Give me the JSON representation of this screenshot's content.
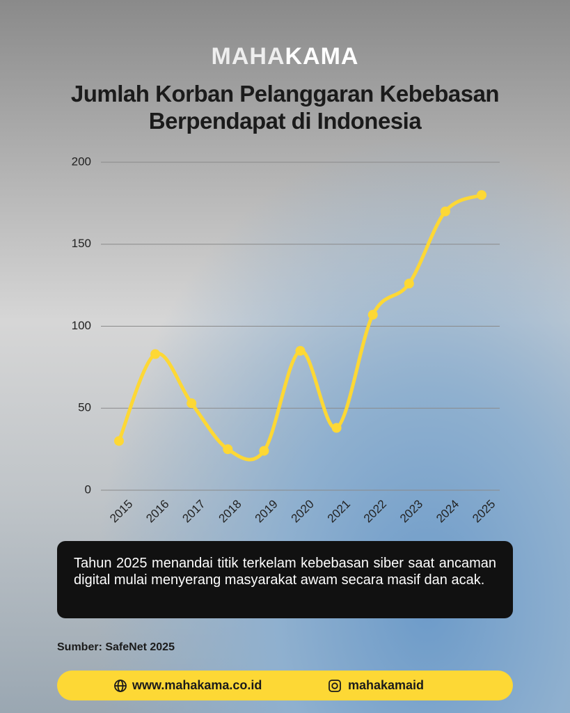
{
  "header": {
    "brand_light": "MAHA",
    "brand_bold": "KAMA"
  },
  "chart_data": {
    "type": "line",
    "title": "Jumlah Korban Pelanggaran Kebebasan Berpendapat di Indonesia",
    "categories": [
      "2015",
      "2016",
      "2017",
      "2018",
      "2019",
      "2020",
      "2021",
      "2022",
      "2023",
      "2024",
      "2025"
    ],
    "values": [
      30,
      83,
      53,
      25,
      24,
      85,
      38,
      107,
      126,
      170,
      180
    ],
    "color": "#fdd835",
    "ylim": [
      0,
      200
    ],
    "yticks": [
      0,
      50,
      100,
      150,
      200
    ],
    "grid": true,
    "annotation": "Tahun 2025 menandai titik terkelam kebebasan siber saat ancaman digital mulai menyerang masyarakat awam secara masif dan acak."
  },
  "source": "Sumber: SafeNet 2025",
  "footer": {
    "website": "www.mahakama.co.id",
    "instagram": "mahakamaid"
  }
}
